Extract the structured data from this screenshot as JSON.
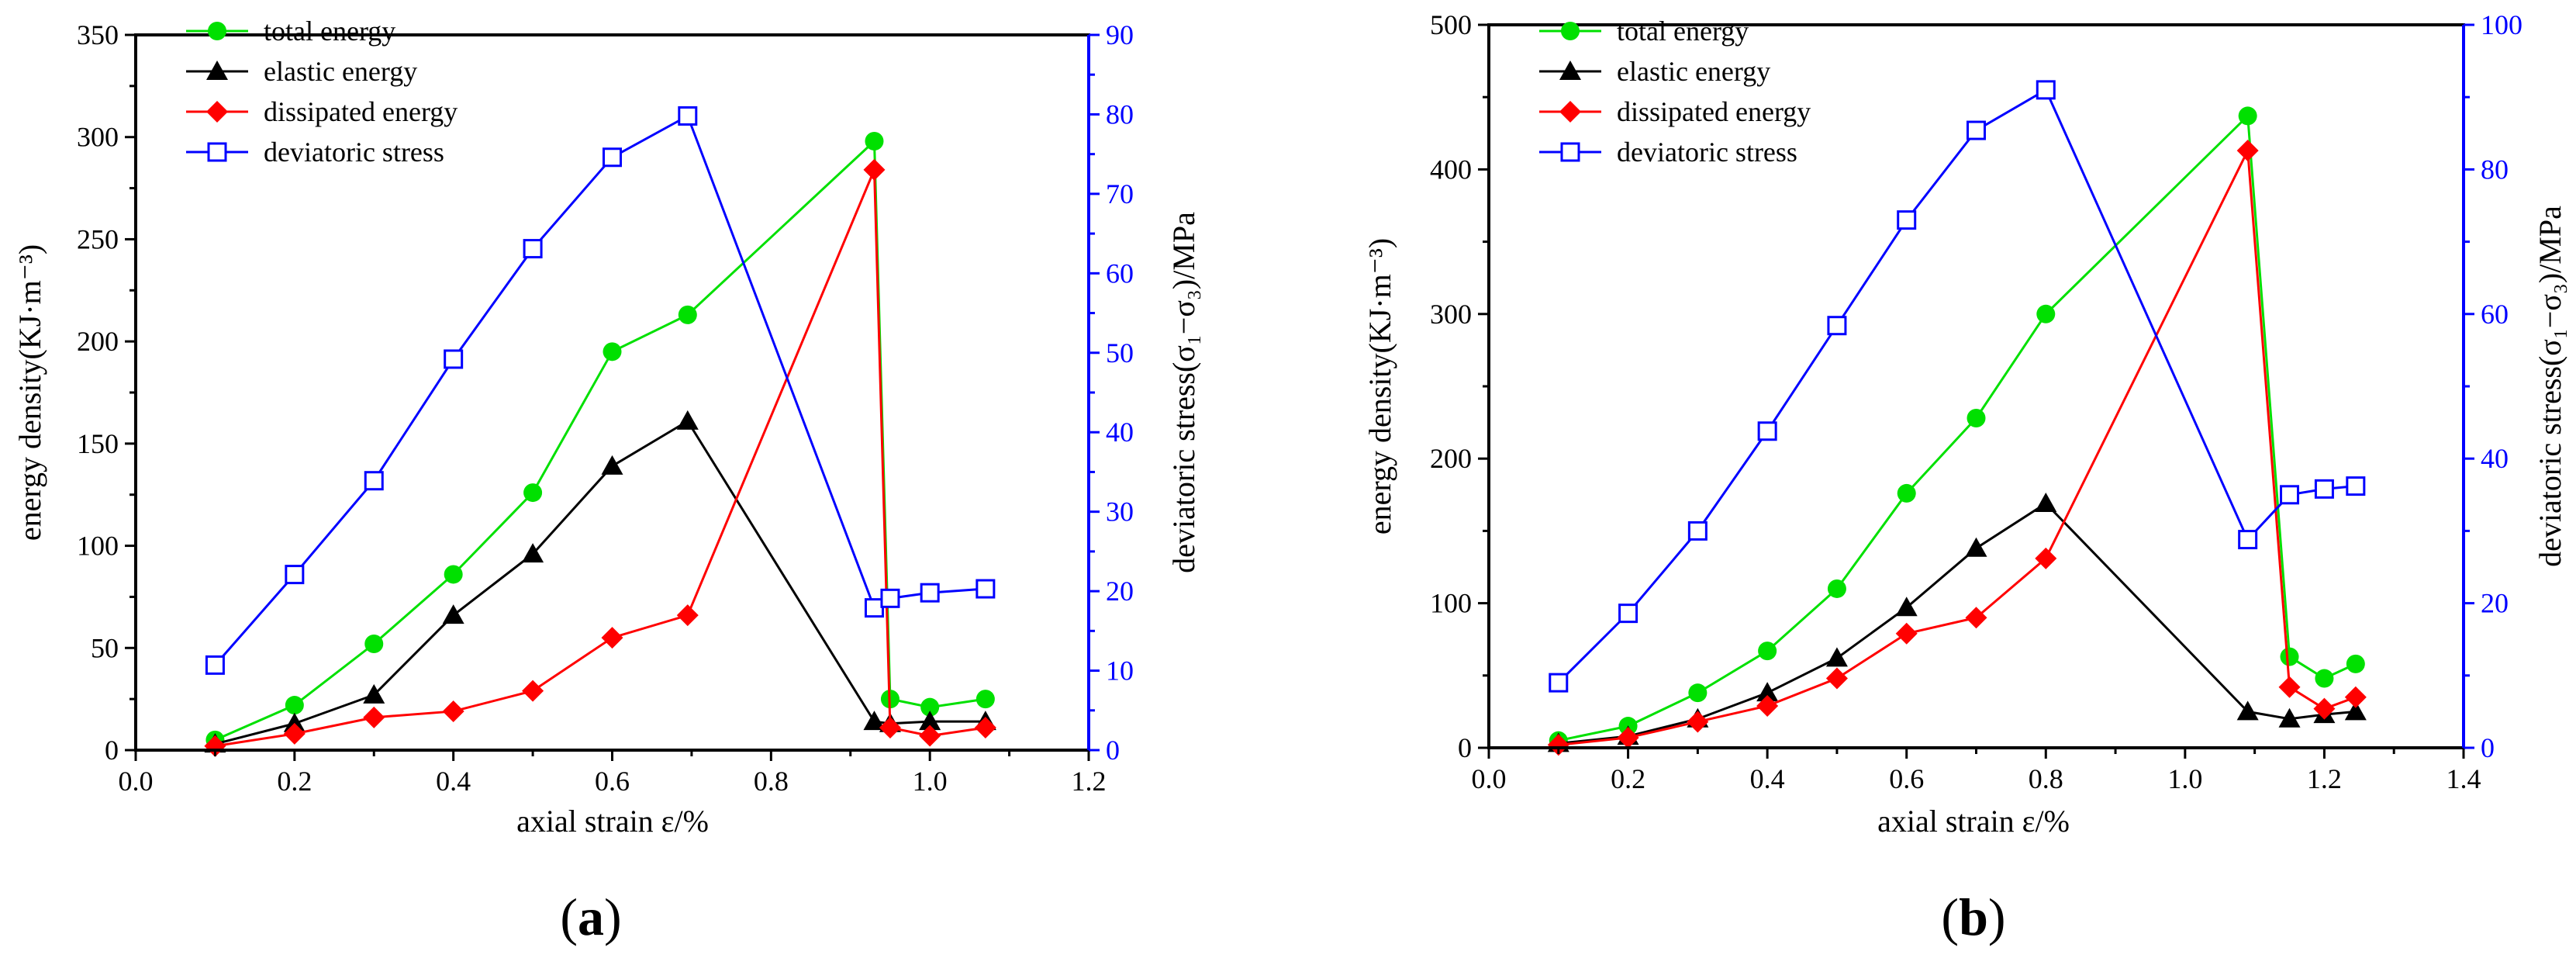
{
  "chart_data": [
    {
      "type": "line",
      "panel_label": "a",
      "xlabel": "axial strain  ε/%",
      "ylabel": "energy density(KJ·m⁻³)",
      "y2label": "deviatoric stress(σ₁−σ₃)/MPa",
      "xlim": [
        0.0,
        1.2
      ],
      "ylim": [
        0,
        350
      ],
      "y2lim": [
        0,
        90
      ],
      "xticks": [
        0.0,
        0.2,
        0.4,
        0.6,
        0.8,
        1.0,
        1.2
      ],
      "xtick_labels": [
        "0.0",
        "0.2",
        "0.4",
        "0.6",
        "0.8",
        "1.0",
        "1.2"
      ],
      "yticks": [
        0,
        50,
        100,
        150,
        200,
        250,
        300,
        350
      ],
      "ytick_labels": [
        "0",
        "50",
        "100",
        "150",
        "200",
        "250",
        "300",
        "350"
      ],
      "y2ticks": [
        0,
        10,
        20,
        30,
        40,
        50,
        60,
        70,
        80,
        90
      ],
      "y2tick_labels": [
        "0",
        "10",
        "20",
        "30",
        "40",
        "50",
        "60",
        "70",
        "80",
        "90"
      ],
      "grid": false,
      "legend_position": "top-left",
      "series": [
        {
          "name": "total energy",
          "axis": "left",
          "color": "#00e000",
          "marker": "circle",
          "x": [
            0.1,
            0.2,
            0.3,
            0.4,
            0.5,
            0.6,
            0.695,
            0.93,
            0.95,
            1.0,
            1.07
          ],
          "y": [
            5,
            22,
            52,
            86,
            126,
            195,
            213,
            298,
            25,
            21,
            25
          ]
        },
        {
          "name": "elastic energy",
          "axis": "left",
          "color": "#000000",
          "marker": "triangle",
          "x": [
            0.1,
            0.2,
            0.3,
            0.4,
            0.5,
            0.6,
            0.695,
            0.93,
            0.95,
            1.0,
            1.07
          ],
          "y": [
            3,
            13,
            27,
            66,
            96,
            139,
            161,
            14,
            13,
            14,
            14
          ]
        },
        {
          "name": "dissipated energy",
          "axis": "left",
          "color": "#ff0000",
          "marker": "diamond",
          "x": [
            0.1,
            0.2,
            0.3,
            0.4,
            0.5,
            0.6,
            0.695,
            0.93,
            0.95,
            1.0,
            1.07
          ],
          "y": [
            2,
            8,
            16,
            19,
            29,
            55,
            66,
            284,
            11,
            7,
            11
          ]
        },
        {
          "name": "deviatoric stress",
          "axis": "right",
          "color": "#0000ff",
          "marker": "square-open",
          "x": [
            0.1,
            0.2,
            0.3,
            0.4,
            0.5,
            0.6,
            0.695,
            0.93,
            0.95,
            1.0,
            1.07
          ],
          "y": [
            10.7,
            22.1,
            33.9,
            49.2,
            63.1,
            74.6,
            79.8,
            17.9,
            19.1,
            19.8,
            20.3
          ]
        }
      ]
    },
    {
      "type": "line",
      "panel_label": "b",
      "xlabel": "axial strain  ε/%",
      "ylabel": "energy density(KJ·m⁻³)",
      "y2label": "deviatoric stress(σ₁−σ₃)/MPa",
      "xlim": [
        0.0,
        1.4
      ],
      "ylim": [
        0,
        500
      ],
      "y2lim": [
        0,
        100
      ],
      "xticks": [
        0.0,
        0.2,
        0.4,
        0.6,
        0.8,
        1.0,
        1.2,
        1.4
      ],
      "xtick_labels": [
        "0.0",
        "0.2",
        "0.4",
        "0.6",
        "0.8",
        "1.0",
        "1.2",
        "1.4"
      ],
      "yticks": [
        0,
        100,
        200,
        300,
        400,
        500
      ],
      "ytick_labels": [
        "0",
        "100",
        "200",
        "300",
        "400",
        "500"
      ],
      "y2ticks": [
        0,
        20,
        40,
        60,
        80,
        100
      ],
      "y2tick_labels": [
        "0",
        "20",
        "40",
        "60",
        "80",
        "100"
      ],
      "grid": false,
      "legend_position": "top-left",
      "series": [
        {
          "name": "total energy",
          "axis": "left",
          "color": "#00e000",
          "marker": "circle",
          "x": [
            0.1,
            0.2,
            0.3,
            0.4,
            0.5,
            0.6,
            0.7,
            0.8,
            1.09,
            1.15,
            1.2,
            1.245
          ],
          "y": [
            5,
            15,
            38,
            67,
            110,
            176,
            228,
            300,
            437,
            63,
            48,
            58
          ]
        },
        {
          "name": "elastic energy",
          "axis": "left",
          "color": "#000000",
          "marker": "triangle",
          "x": [
            0.1,
            0.2,
            0.3,
            0.4,
            0.5,
            0.6,
            0.7,
            0.8,
            1.09,
            1.15,
            1.2,
            1.245
          ],
          "y": [
            3,
            8,
            20,
            38,
            62,
            97,
            138,
            169,
            25,
            20,
            23,
            25
          ]
        },
        {
          "name": "dissipated energy",
          "axis": "left",
          "color": "#ff0000",
          "marker": "diamond",
          "x": [
            0.1,
            0.2,
            0.3,
            0.4,
            0.5,
            0.6,
            0.7,
            0.8,
            1.09,
            1.15,
            1.2,
            1.245
          ],
          "y": [
            2,
            7,
            18,
            29,
            48,
            79,
            90,
            131,
            413,
            42,
            27,
            35
          ]
        },
        {
          "name": "deviatoric stress",
          "axis": "right",
          "color": "#0000ff",
          "marker": "square-open",
          "x": [
            0.1,
            0.2,
            0.3,
            0.4,
            0.5,
            0.6,
            0.7,
            0.8,
            1.09,
            1.15,
            1.2,
            1.245
          ],
          "y": [
            9,
            18.6,
            30,
            43.8,
            58.4,
            73,
            85.4,
            91,
            28.8,
            35,
            35.8,
            36.2
          ]
        }
      ]
    }
  ]
}
